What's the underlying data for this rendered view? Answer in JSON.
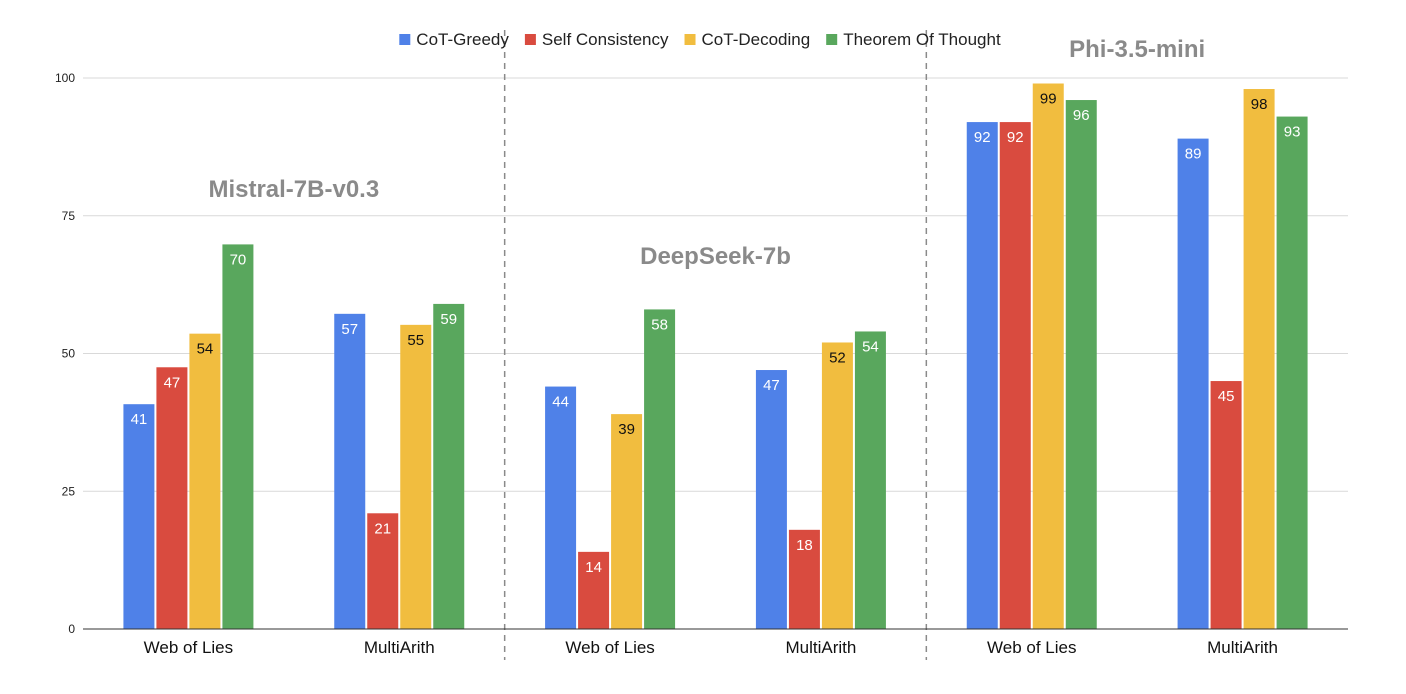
{
  "chart_data": {
    "type": "bar",
    "ylim": [
      0,
      100
    ],
    "yticks": [
      0,
      25,
      50,
      75,
      100
    ],
    "grid": true,
    "legend_position": "top",
    "series": [
      {
        "name": "CoT-Greedy",
        "color": "#4f81e8",
        "label_color": "#ffffff"
      },
      {
        "name": "Self Consistency",
        "color": "#d94b3f",
        "label_color": "#ffffff"
      },
      {
        "name": "CoT-Decoding",
        "color": "#f1bd3f",
        "label_color": "#111111"
      },
      {
        "name": "Theorem Of Thought",
        "color": "#59a75d",
        "label_color": "#ffffff"
      }
    ],
    "groups": [
      {
        "title": "Mistral-7B-v0.3",
        "categories": [
          {
            "label": "Web of Lies",
            "values": [
              40.8,
              47.5,
              53.6,
              69.8
            ],
            "labels": [
              "41",
              "47",
              "54",
              "70"
            ]
          },
          {
            "label": "MultiArith",
            "values": [
              57.2,
              21.0,
              55.2,
              59.0
            ],
            "labels": [
              "57",
              "21",
              "55",
              "59"
            ]
          }
        ]
      },
      {
        "title": "DeepSeek-7b",
        "categories": [
          {
            "label": "Web of Lies",
            "values": [
              44.0,
              14.0,
              39.0,
              58.0
            ],
            "labels": [
              "44",
              "14",
              "39",
              "58"
            ]
          },
          {
            "label": "MultiArith",
            "values": [
              47.0,
              18.0,
              52.0,
              54.0
            ],
            "labels": [
              "47",
              "18",
              "52",
              "54"
            ]
          }
        ]
      },
      {
        "title": "Phi-3.5-mini",
        "categories": [
          {
            "label": "Web of Lies",
            "values": [
              92.0,
              92.0,
              99.0,
              96.0
            ],
            "labels": [
              "92",
              "92",
              "99",
              "96"
            ]
          },
          {
            "label": "MultiArith",
            "values": [
              89.0,
              45.0,
              98.0,
              93.0
            ],
            "labels": [
              "89",
              "45",
              "98",
              "93"
            ]
          }
        ]
      }
    ]
  }
}
